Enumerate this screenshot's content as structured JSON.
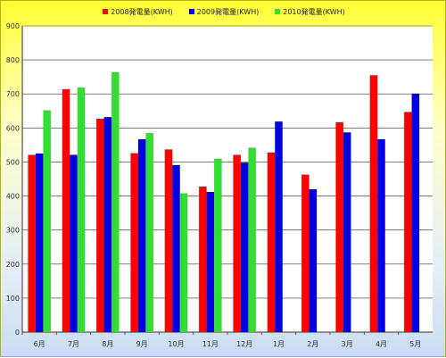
{
  "chart_data": {
    "type": "bar",
    "categories": [
      "6月",
      "7月",
      "8月",
      "9月",
      "10月",
      "11月",
      "12月",
      "1月",
      "2月",
      "3月",
      "4月",
      "5月"
    ],
    "series": [
      {
        "name": "2008発電量(KWH)",
        "color": "#ff0000",
        "values": [
          521,
          714,
          627,
          526,
          537,
          428,
          521,
          528,
          463,
          617,
          755,
          647
        ]
      },
      {
        "name": "2009発電量(KWH)",
        "color": "#0000e0",
        "values": [
          525,
          521,
          632,
          567,
          491,
          412,
          498,
          619,
          420,
          587,
          567,
          701
        ]
      },
      {
        "name": "2010発電量(KWH)",
        "color": "#33dd33",
        "values": [
          652,
          719,
          764,
          585,
          408,
          510,
          542,
          null,
          null,
          null,
          null,
          null
        ]
      }
    ],
    "ylim": [
      0,
      900
    ],
    "yticks": [
      0,
      100,
      200,
      300,
      400,
      500,
      600,
      700,
      800,
      900
    ],
    "grid": true,
    "legend_position": "top-center"
  }
}
